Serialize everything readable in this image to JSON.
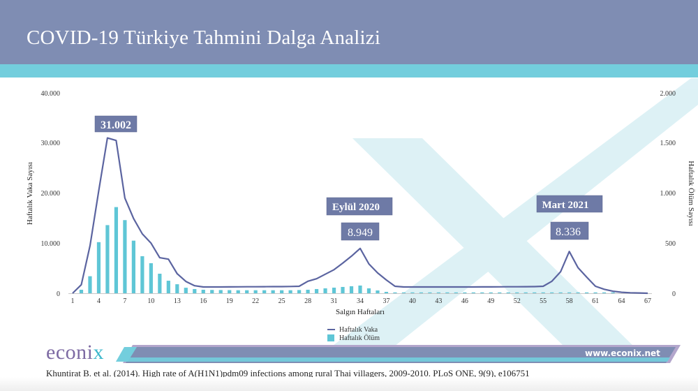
{
  "header": {
    "title": "COVID-19 Türkiye Tahmini Dalga Analizi"
  },
  "colors": {
    "header_bg": "#7f8db3",
    "accent_stripe": "#73cedd",
    "line_series": "#5b64a0",
    "bar_series": "#5fc6d6",
    "callout_bg": "#6e7aa6",
    "watermark": "#d8eff4"
  },
  "callouts": {
    "peak1_value": "31.002",
    "peak2_label": "Eylül 2020",
    "peak2_value": "8.949",
    "peak3_label": "Mart 2021",
    "peak3_value": "8.336"
  },
  "legend": {
    "line_label": "Haftalık Vaka",
    "bar_label": "Haftalık Ölüm"
  },
  "footer": {
    "logo_text": "econi",
    "logo_x": "x",
    "website": "www.econix.net",
    "citation": "Khuntirat B. et al. (2014). High rate of A(H1N1)pdm09 infections among rural Thai villagers, 2009-2010. PLoS ONE, 9(9), e106751"
  },
  "chart_data": {
    "type": "bar+line",
    "title": "COVID-19 Türkiye Tahmini Dalga Analizi",
    "xlabel": "Salgın Haftaları",
    "ylabel_left": "Haftalık Vaka Sayısı",
    "ylabel_right": "Haftalık Ölüm Sayısı",
    "ylim_left": [
      0,
      40000
    ],
    "ylim_right": [
      0,
      2000
    ],
    "yticks_left": [
      "0",
      "10.000",
      "20.000",
      "30.000",
      "40.000"
    ],
    "yticks_right": [
      "0",
      "500",
      "1.000",
      "1.500",
      "2.000"
    ],
    "xticks": [
      "1",
      "4",
      "7",
      "10",
      "13",
      "16",
      "19",
      "22",
      "25",
      "28",
      "31",
      "34",
      "37",
      "40",
      "43",
      "46",
      "49",
      "52",
      "55",
      "58",
      "61",
      "64",
      "67"
    ],
    "grid": false,
    "legend_position": "bottom-center",
    "x": [
      1,
      2,
      3,
      4,
      5,
      6,
      7,
      8,
      9,
      10,
      11,
      12,
      13,
      14,
      15,
      16,
      17,
      18,
      19,
      20,
      21,
      22,
      23,
      24,
      25,
      26,
      27,
      28,
      29,
      30,
      31,
      32,
      33,
      34,
      35,
      36,
      37,
      38,
      39,
      40,
      41,
      42,
      43,
      44,
      45,
      46,
      47,
      48,
      49,
      50,
      51,
      52,
      53,
      54,
      55,
      56,
      57,
      58,
      59,
      60,
      61,
      62,
      63,
      64,
      65,
      66,
      67
    ],
    "series": [
      {
        "name": "Haftalık Vaka",
        "type": "line",
        "axis": "left",
        "values": [
          0,
          1700,
          9500,
          20500,
          31002,
          30500,
          19000,
          14900,
          11850,
          10000,
          7100,
          6800,
          3900,
          2350,
          1500,
          1250,
          1250,
          1260,
          1270,
          1280,
          1290,
          1300,
          1310,
          1320,
          1330,
          1350,
          1400,
          2400,
          2900,
          3800,
          4700,
          6000,
          7400,
          8949,
          5850,
          4050,
          2650,
          1400,
          1250,
          1250,
          1250,
          1250,
          1250,
          1250,
          1250,
          1260,
          1260,
          1270,
          1270,
          1280,
          1290,
          1300,
          1310,
          1320,
          1400,
          2400,
          4300,
          8336,
          5100,
          3200,
          1400,
          800,
          400,
          200,
          100,
          50,
          0
        ]
      },
      {
        "name": "Haftalık Ölüm",
        "type": "bar",
        "axis": "right",
        "values": [
          0,
          35,
          170,
          510,
          680,
          860,
          730,
          525,
          370,
          300,
          195,
          125,
          90,
          55,
          42,
          35,
          33,
          32,
          31,
          30,
          30,
          30,
          30,
          30,
          30,
          30,
          32,
          35,
          42,
          49,
          56,
          63,
          70,
          77,
          49,
          28,
          14,
          7,
          7,
          7,
          7,
          7,
          7,
          7,
          7,
          7,
          7,
          7,
          7,
          7,
          7,
          7,
          7,
          7,
          7,
          7,
          7,
          7,
          5,
          4,
          3,
          2,
          1,
          0,
          0,
          0,
          0
        ]
      }
    ],
    "annotations": [
      {
        "week": 5,
        "text": "31.002"
      },
      {
        "week": 34,
        "text": "Eylül 2020"
      },
      {
        "week": 34,
        "text": "8.949"
      },
      {
        "week": 58,
        "text": "Mart 2021"
      },
      {
        "week": 58,
        "text": "8.336"
      }
    ]
  }
}
